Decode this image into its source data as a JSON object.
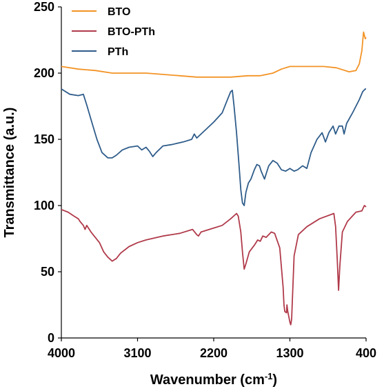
{
  "chart_data": {
    "type": "line",
    "title": "",
    "xlabel": "Wavenumber (cm",
    "xlabel_sup": "-1",
    "xlabel_suffix": ")",
    "ylabel": "Transmittance (a.u.)",
    "xlim": [
      4000,
      400
    ],
    "x_reversed": true,
    "ylim": [
      0,
      250
    ],
    "x_ticks": [
      4000,
      3100,
      2200,
      1300,
      400
    ],
    "y_ticks": [
      0,
      50,
      100,
      150,
      200,
      250
    ],
    "grid": false,
    "legend_position": "top-left",
    "series": [
      {
        "name": "BTO",
        "color": "#f39325",
        "points": [
          [
            4000,
            205
          ],
          [
            3800,
            203
          ],
          [
            3600,
            202
          ],
          [
            3400,
            200
          ],
          [
            3200,
            200
          ],
          [
            3000,
            200
          ],
          [
            2800,
            199
          ],
          [
            2600,
            198
          ],
          [
            2400,
            197
          ],
          [
            2200,
            197
          ],
          [
            2000,
            197
          ],
          [
            1800,
            198
          ],
          [
            1650,
            198
          ],
          [
            1500,
            200
          ],
          [
            1400,
            203
          ],
          [
            1300,
            205
          ],
          [
            1100,
            205
          ],
          [
            900,
            205
          ],
          [
            750,
            204
          ],
          [
            600,
            201
          ],
          [
            520,
            202
          ],
          [
            480,
            207
          ],
          [
            450,
            217
          ],
          [
            430,
            231
          ],
          [
            410,
            226
          ],
          [
            400,
            227
          ]
        ]
      },
      {
        "name": "BTO-PTh",
        "color": "#b03a4a",
        "points": [
          [
            4000,
            97
          ],
          [
            3920,
            95
          ],
          [
            3850,
            92
          ],
          [
            3800,
            90
          ],
          [
            3780,
            88
          ],
          [
            3740,
            85
          ],
          [
            3720,
            82
          ],
          [
            3700,
            85
          ],
          [
            3650,
            80
          ],
          [
            3550,
            72
          ],
          [
            3500,
            65
          ],
          [
            3450,
            61
          ],
          [
            3400,
            58
          ],
          [
            3350,
            60
          ],
          [
            3300,
            64
          ],
          [
            3200,
            69
          ],
          [
            3100,
            72
          ],
          [
            3000,
            74
          ],
          [
            2800,
            77
          ],
          [
            2600,
            79
          ],
          [
            2450,
            82
          ],
          [
            2400,
            78
          ],
          [
            2380,
            77
          ],
          [
            2350,
            80
          ],
          [
            2200,
            83
          ],
          [
            2100,
            85
          ],
          [
            2000,
            90
          ],
          [
            1930,
            94
          ],
          [
            1910,
            92
          ],
          [
            1880,
            80
          ],
          [
            1860,
            65
          ],
          [
            1840,
            52
          ],
          [
            1820,
            56
          ],
          [
            1780,
            65
          ],
          [
            1720,
            70
          ],
          [
            1680,
            74
          ],
          [
            1650,
            73
          ],
          [
            1620,
            77
          ],
          [
            1580,
            76
          ],
          [
            1520,
            80
          ],
          [
            1480,
            79
          ],
          [
            1420,
            68
          ],
          [
            1380,
            38
          ],
          [
            1370,
            25
          ],
          [
            1360,
            20
          ],
          [
            1340,
            19
          ],
          [
            1335,
            25
          ],
          [
            1325,
            20
          ],
          [
            1300,
            12
          ],
          [
            1290,
            10
          ],
          [
            1280,
            14
          ],
          [
            1270,
            30
          ],
          [
            1250,
            62
          ],
          [
            1200,
            78
          ],
          [
            1100,
            84
          ],
          [
            950,
            90
          ],
          [
            780,
            94
          ],
          [
            760,
            84
          ],
          [
            740,
            58
          ],
          [
            725,
            36
          ],
          [
            710,
            54
          ],
          [
            680,
            80
          ],
          [
            620,
            88
          ],
          [
            520,
            95
          ],
          [
            450,
            96
          ],
          [
            420,
            100
          ],
          [
            400,
            99
          ]
        ]
      },
      {
        "name": "PTh",
        "color": "#2e5c8a",
        "points": [
          [
            4000,
            188
          ],
          [
            3900,
            184
          ],
          [
            3800,
            183
          ],
          [
            3740,
            184
          ],
          [
            3700,
            176
          ],
          [
            3650,
            165
          ],
          [
            3580,
            150
          ],
          [
            3520,
            140
          ],
          [
            3450,
            136
          ],
          [
            3400,
            136
          ],
          [
            3350,
            138
          ],
          [
            3280,
            142
          ],
          [
            3200,
            144
          ],
          [
            3100,
            145
          ],
          [
            3050,
            142
          ],
          [
            3000,
            144
          ],
          [
            2960,
            141
          ],
          [
            2920,
            137
          ],
          [
            2880,
            140
          ],
          [
            2800,
            145
          ],
          [
            2700,
            146
          ],
          [
            2560,
            148
          ],
          [
            2460,
            150
          ],
          [
            2430,
            154
          ],
          [
            2400,
            151
          ],
          [
            2300,
            157
          ],
          [
            2200,
            163
          ],
          [
            2100,
            170
          ],
          [
            2050,
            178
          ],
          [
            2000,
            186
          ],
          [
            1980,
            187
          ],
          [
            1960,
            175
          ],
          [
            1930,
            155
          ],
          [
            1900,
            130
          ],
          [
            1880,
            112
          ],
          [
            1860,
            102
          ],
          [
            1840,
            100
          ],
          [
            1820,
            110
          ],
          [
            1790,
            117
          ],
          [
            1760,
            120
          ],
          [
            1720,
            127
          ],
          [
            1690,
            131
          ],
          [
            1660,
            130
          ],
          [
            1640,
            126
          ],
          [
            1620,
            123
          ],
          [
            1600,
            120
          ],
          [
            1580,
            124
          ],
          [
            1550,
            130
          ],
          [
            1500,
            134
          ],
          [
            1450,
            132
          ],
          [
            1400,
            127
          ],
          [
            1350,
            126
          ],
          [
            1300,
            128
          ],
          [
            1250,
            126
          ],
          [
            1210,
            127
          ],
          [
            1150,
            130
          ],
          [
            1100,
            128
          ],
          [
            1050,
            140
          ],
          [
            980,
            150
          ],
          [
            920,
            155
          ],
          [
            880,
            148
          ],
          [
            840,
            155
          ],
          [
            790,
            160
          ],
          [
            760,
            154
          ],
          [
            720,
            160
          ],
          [
            680,
            160
          ],
          [
            660,
            154
          ],
          [
            630,
            162
          ],
          [
            560,
            170
          ],
          [
            520,
            175
          ],
          [
            480,
            180
          ],
          [
            440,
            186
          ],
          [
            410,
            188
          ],
          [
            400,
            188
          ]
        ]
      }
    ]
  }
}
